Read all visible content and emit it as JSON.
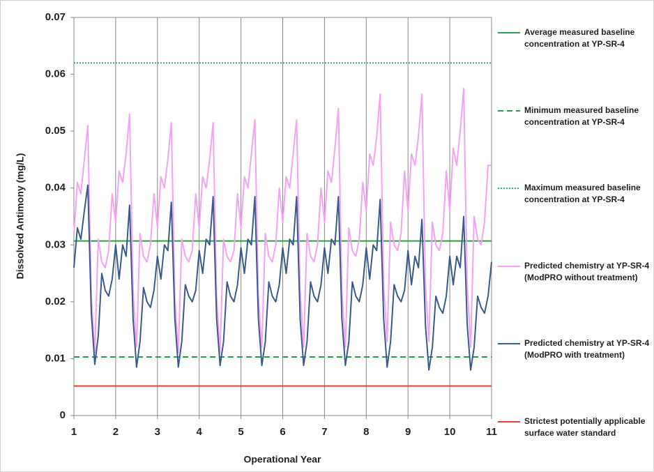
{
  "chart_data": {
    "type": "line",
    "ylabel": "Dissolved Antimony (mg/L)",
    "xlabel": "Operational Year",
    "xlim": [
      1,
      11
    ],
    "xticks": [
      1,
      2,
      3,
      4,
      5,
      6,
      7,
      8,
      9,
      10,
      11
    ],
    "ylim": [
      0,
      0.07
    ],
    "yticks": [
      0,
      0.01,
      0.02,
      0.03,
      0.04,
      0.05,
      0.06,
      0.07
    ],
    "grid": "x",
    "legend": "right",
    "x": [
      1,
      1.083,
      1.167,
      1.25,
      1.333,
      1.417,
      1.5,
      1.583,
      1.667,
      1.75,
      1.833,
      1.917,
      2,
      2.083,
      2.167,
      2.25,
      2.333,
      2.417,
      2.5,
      2.583,
      2.667,
      2.75,
      2.833,
      2.917,
      3,
      3.083,
      3.167,
      3.25,
      3.333,
      3.417,
      3.5,
      3.583,
      3.667,
      3.75,
      3.833,
      3.917,
      4,
      4.083,
      4.167,
      4.25,
      4.333,
      4.417,
      4.5,
      4.583,
      4.667,
      4.75,
      4.833,
      4.917,
      5,
      5.083,
      5.167,
      5.25,
      5.333,
      5.417,
      5.5,
      5.583,
      5.667,
      5.75,
      5.833,
      5.917,
      6,
      6.083,
      6.167,
      6.25,
      6.333,
      6.417,
      6.5,
      6.583,
      6.667,
      6.75,
      6.833,
      6.917,
      7,
      7.083,
      7.167,
      7.25,
      7.333,
      7.417,
      7.5,
      7.583,
      7.667,
      7.75,
      7.833,
      7.917,
      8,
      8.083,
      8.167,
      8.25,
      8.333,
      8.417,
      8.5,
      8.583,
      8.667,
      8.75,
      8.833,
      8.917,
      9,
      9.083,
      9.167,
      9.25,
      9.333,
      9.417,
      9.5,
      9.583,
      9.667,
      9.75,
      9.833,
      9.917,
      10,
      10.083,
      10.167,
      10.25,
      10.333,
      10.417,
      10.5,
      10.583,
      10.667,
      10.75,
      10.833,
      10.917,
      11
    ],
    "series": [
      {
        "name": "Average measured baseline concentration at YP-SR-4",
        "color": "#2e9e48",
        "style": "solid",
        "value": 0.0307
      },
      {
        "name": "Minimum measured baseline concentration at YP-SR-4",
        "color": "#22a043",
        "style": "dashed",
        "value": 0.0103
      },
      {
        "name": "Maximum measured baseline concentration at YP-SR-4",
        "color": "#3aa88a",
        "style": "dotted",
        "value": 0.062
      },
      {
        "name": "Predicted chemistry at YP-SR-4 (ModPRO without treatment)",
        "color": "#f4a3f2",
        "style": "solid",
        "values": [
          0.032,
          0.041,
          0.039,
          0.045,
          0.051,
          0.021,
          0.011,
          0.031,
          0.027,
          0.026,
          0.029,
          0.039,
          0.034,
          0.043,
          0.041,
          0.046,
          0.053,
          0.022,
          0.012,
          0.032,
          0.028,
          0.027,
          0.03,
          0.039,
          0.033,
          0.042,
          0.04,
          0.045,
          0.0515,
          0.021,
          0.011,
          0.031,
          0.028,
          0.027,
          0.029,
          0.039,
          0.033,
          0.042,
          0.04,
          0.045,
          0.0515,
          0.021,
          0.011,
          0.031,
          0.028,
          0.027,
          0.029,
          0.039,
          0.033,
          0.042,
          0.04,
          0.046,
          0.052,
          0.021,
          0.012,
          0.032,
          0.028,
          0.027,
          0.03,
          0.04,
          0.034,
          0.042,
          0.04,
          0.046,
          0.052,
          0.022,
          0.012,
          0.032,
          0.028,
          0.027,
          0.03,
          0.04,
          0.034,
          0.043,
          0.041,
          0.047,
          0.054,
          0.022,
          0.012,
          0.033,
          0.029,
          0.028,
          0.031,
          0.041,
          0.036,
          0.046,
          0.044,
          0.049,
          0.0565,
          0.023,
          0.013,
          0.034,
          0.03,
          0.029,
          0.032,
          0.043,
          0.036,
          0.046,
          0.044,
          0.049,
          0.0565,
          0.023,
          0.013,
          0.034,
          0.03,
          0.029,
          0.032,
          0.043,
          0.036,
          0.047,
          0.044,
          0.05,
          0.0575,
          0.023,
          0.012,
          0.035,
          0.031,
          0.03,
          0.034,
          0.044,
          0.044
        ]
      },
      {
        "name": "Predicted chemistry at YP-SR-4 (ModPRO with treatment)",
        "color": "#3a5a8c",
        "style": "solid",
        "values": [
          0.026,
          0.033,
          0.031,
          0.036,
          0.0405,
          0.018,
          0.009,
          0.014,
          0.025,
          0.022,
          0.021,
          0.024,
          0.03,
          0.024,
          0.03,
          0.028,
          0.037,
          0.017,
          0.0085,
          0.013,
          0.0225,
          0.02,
          0.019,
          0.022,
          0.028,
          0.024,
          0.03,
          0.029,
          0.0375,
          0.017,
          0.0085,
          0.013,
          0.023,
          0.021,
          0.02,
          0.022,
          0.029,
          0.025,
          0.031,
          0.03,
          0.0385,
          0.017,
          0.0088,
          0.013,
          0.0235,
          0.021,
          0.02,
          0.023,
          0.0295,
          0.025,
          0.031,
          0.03,
          0.0385,
          0.017,
          0.0088,
          0.013,
          0.0235,
          0.021,
          0.02,
          0.023,
          0.0295,
          0.025,
          0.031,
          0.03,
          0.0385,
          0.017,
          0.0088,
          0.013,
          0.0235,
          0.021,
          0.02,
          0.023,
          0.0295,
          0.025,
          0.031,
          0.03,
          0.0385,
          0.017,
          0.0088,
          0.013,
          0.0235,
          0.021,
          0.02,
          0.023,
          0.0295,
          0.024,
          0.03,
          0.029,
          0.038,
          0.017,
          0.0085,
          0.013,
          0.023,
          0.021,
          0.02,
          0.022,
          0.029,
          0.023,
          0.028,
          0.026,
          0.0345,
          0.016,
          0.008,
          0.012,
          0.021,
          0.019,
          0.018,
          0.021,
          0.028,
          0.023,
          0.028,
          0.026,
          0.035,
          0.016,
          0.008,
          0.012,
          0.021,
          0.019,
          0.018,
          0.021,
          0.027
        ]
      },
      {
        "name": "Strictest potentially applicable surface water standard",
        "color": "#e0402e",
        "style": "solid",
        "value": 0.0052
      }
    ]
  }
}
